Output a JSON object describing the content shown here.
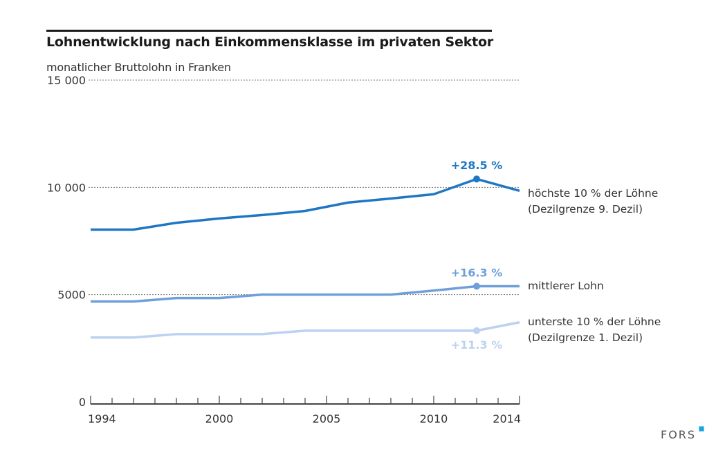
{
  "chart_data": {
    "type": "line",
    "title": "Lohnentwicklung nach Einkommensklasse im privaten Sektor",
    "ylabel": "monatlicher Bruttolohn in Franken",
    "xlabel": "",
    "xlim": [
      1994,
      2014
    ],
    "ylim": [
      0,
      15000
    ],
    "grid": true,
    "x_tick_labels": [
      "1994",
      "2000",
      "2005",
      "2010",
      "2014"
    ],
    "x_ticks": [
      1994,
      2000,
      2005,
      2010,
      2014
    ],
    "y_ticks": [
      0,
      5000,
      10000,
      15000
    ],
    "y_tick_labels": [
      "0",
      "5000",
      "10 000",
      "15 000"
    ],
    "x": [
      1994,
      1996,
      1998,
      2000,
      2002,
      2004,
      2006,
      2008,
      2010,
      2012,
      2014
    ],
    "series": [
      {
        "name": "höchste 10 % der Löhne",
        "name_line2": "(Dezilgrenze 9. Dezil)",
        "color": "#1f77c4",
        "values": [
          8030,
          8030,
          8350,
          8550,
          8710,
          8900,
          9290,
          9480,
          9680,
          10390,
          9840
        ],
        "annotation": "+28.5 %",
        "annotation_x": 2012,
        "annotation_position": "above"
      },
      {
        "name": "mittlerer Lohn",
        "name_line2": "",
        "color": "#6e9fd9",
        "values": [
          4680,
          4680,
          4840,
          4840,
          5000,
          5000,
          5000,
          5000,
          5190,
          5390,
          5390
        ],
        "annotation": "+16.3 %",
        "annotation_x": 2012,
        "annotation_position": "above"
      },
      {
        "name": "unterste 10 % der Löhne",
        "name_line2": "(Dezilgrenze 1. Dezil)",
        "color": "#bcd2f0",
        "values": [
          3000,
          3000,
          3160,
          3160,
          3160,
          3320,
          3320,
          3320,
          3320,
          3320,
          3710
        ],
        "annotation": "+11.3 %",
        "annotation_x": 2012,
        "annotation_position": "below"
      }
    ]
  },
  "source_logo": "FORS"
}
